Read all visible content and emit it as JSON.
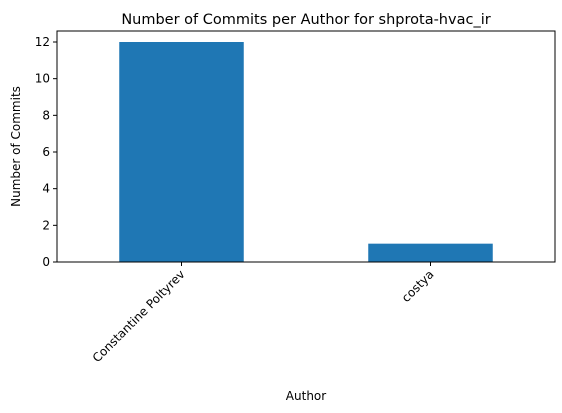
{
  "chart_data": {
    "type": "bar",
    "title": "Number of Commits per Author for shprota-hvac_ir",
    "xlabel": "Author",
    "ylabel": "Number of Commits",
    "categories": [
      "Constantine Poltyrev",
      "costya"
    ],
    "values": [
      12,
      1
    ],
    "ylim": [
      0,
      12.6
    ],
    "yticks": [
      0,
      2,
      4,
      6,
      8,
      10,
      12
    ],
    "bar_color": "#1f77b4",
    "grid": false,
    "legend": "none"
  }
}
